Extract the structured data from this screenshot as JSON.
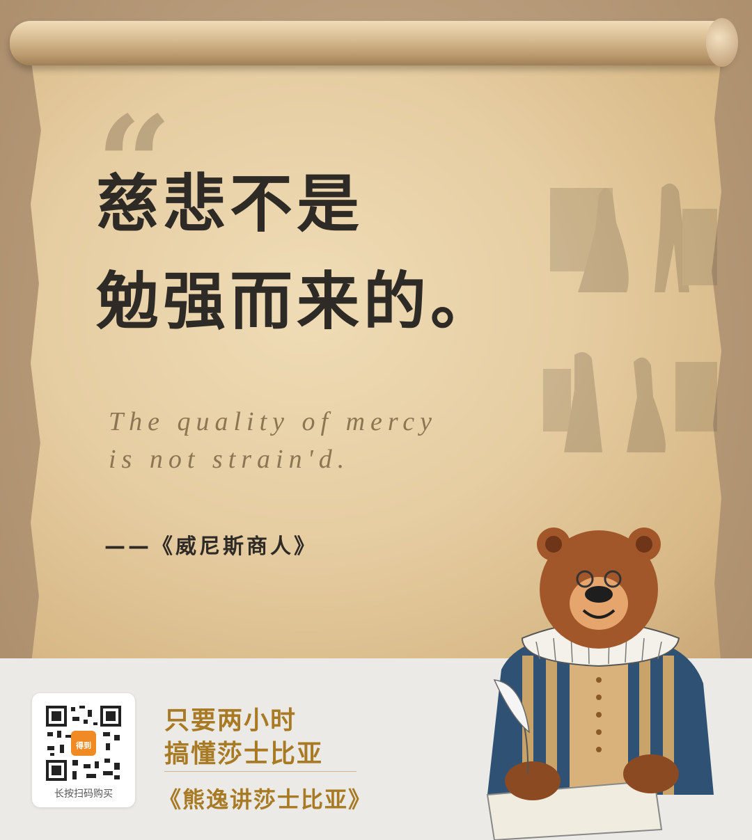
{
  "quote": {
    "line1": "慈悲不是",
    "line2": "勉强而来的。",
    "en_line1": "The quality of mercy",
    "en_line2": "is not strain'd.",
    "source": "——《威尼斯商人》"
  },
  "promo": {
    "slogan_line1": "只要两小时",
    "slogan_line2": "搞懂莎士比亚",
    "course_title": "《熊逸讲莎士比亚》",
    "qr_caption": "长按扫码购买",
    "qr_logo_text": "得到"
  },
  "colors": {
    "accent": "#a87a24",
    "headline": "#2e2a26",
    "footer_bg": "#ebeae6"
  }
}
